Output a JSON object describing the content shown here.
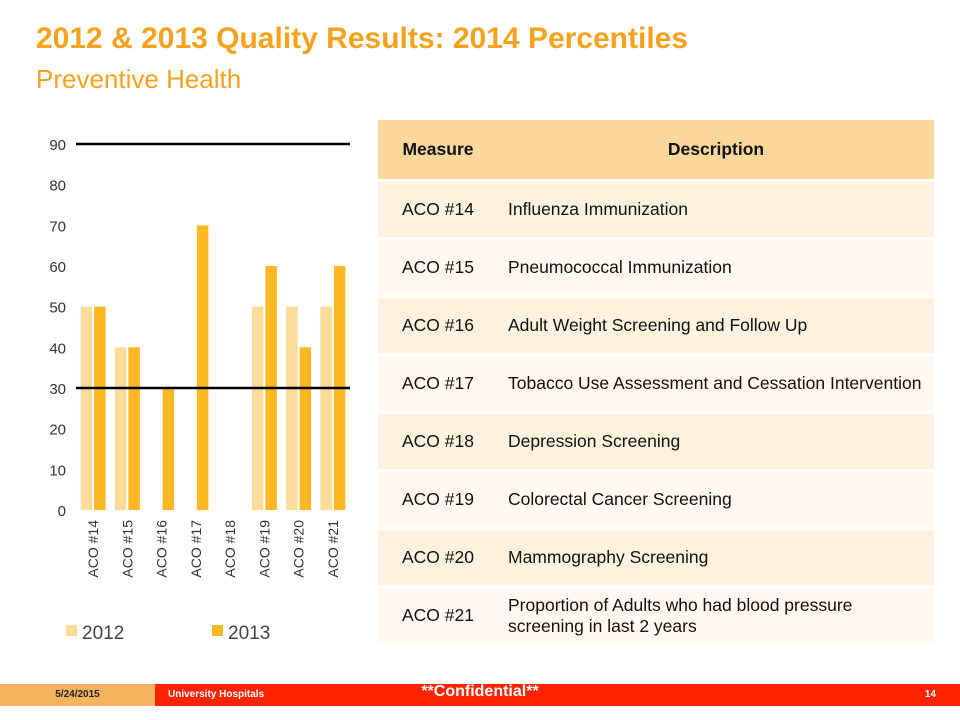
{
  "header": {
    "title": "2012 & 2013 Quality Results: 2014 Percentiles",
    "subtitle": "Preventive Health"
  },
  "chart_data": {
    "type": "bar",
    "categories": [
      "ACO #14",
      "ACO #15",
      "ACO #16",
      "ACO #17",
      "ACO #18",
      "ACO #19",
      "ACO #20",
      "ACO #21"
    ],
    "series": [
      {
        "name": "2012",
        "values": [
          50,
          40,
          null,
          null,
          null,
          50,
          50,
          50
        ],
        "color": "#FCDB9B"
      },
      {
        "name": "2013",
        "values": [
          50,
          40,
          30,
          70,
          null,
          60,
          40,
          60
        ],
        "color": "#FDB823"
      }
    ],
    "reference_lines": [
      90,
      30
    ],
    "ylim": [
      0,
      90
    ],
    "yticks": [
      0,
      10,
      20,
      30,
      40,
      50,
      60,
      70,
      80,
      90
    ],
    "grid": false,
    "legend_position": "bottom",
    "xlabel": "",
    "ylabel": ""
  },
  "table": {
    "headers": [
      "Measure",
      "Description"
    ],
    "rows": [
      {
        "measure": "ACO #14",
        "description": "Influenza Immunization"
      },
      {
        "measure": "ACO #15",
        "description": "Pneumococcal Immunization"
      },
      {
        "measure": "ACO #16",
        "description": "Adult Weight Screening and Follow Up"
      },
      {
        "measure": "ACO #17",
        "description": "Tobacco Use Assessment and Cessation Intervention"
      },
      {
        "measure": "ACO #18",
        "description": "Depression Screening"
      },
      {
        "measure": "ACO #19",
        "description": "Colorectal Cancer Screening"
      },
      {
        "measure": "ACO #20",
        "description": "Mammography Screening"
      },
      {
        "measure": "ACO #21",
        "description": "Proportion of Adults who had blood pressure screening in last 2 years"
      }
    ]
  },
  "footer": {
    "date": "5/24/2015",
    "organization": "University Hospitals",
    "confidential": "**Confidential**",
    "page_number": "14"
  }
}
